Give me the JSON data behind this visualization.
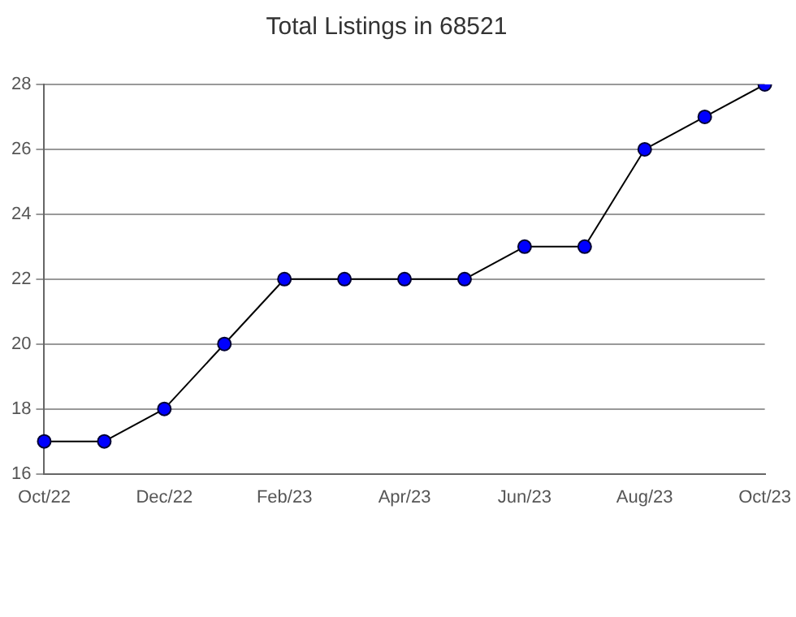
{
  "chart_data": {
    "type": "line",
    "title": "Total Listings in 68521",
    "categories": [
      "Oct/22",
      null,
      "Dec/22",
      null,
      "Feb/23",
      null,
      "Apr/23",
      null,
      "Jun/23",
      null,
      "Aug/23",
      null,
      "Oct/23"
    ],
    "series": [
      {
        "color": "#0000ff",
        "values": [
          17,
          17,
          18,
          20,
          22,
          22,
          22,
          22,
          23,
          23,
          26,
          27,
          28
        ]
      }
    ],
    "ylim": [
      16,
      28
    ],
    "yticks": [
      16,
      18,
      20,
      22,
      24,
      26,
      28
    ],
    "grid": "y",
    "legend": false,
    "marker": "circle",
    "line_style": "solid"
  }
}
